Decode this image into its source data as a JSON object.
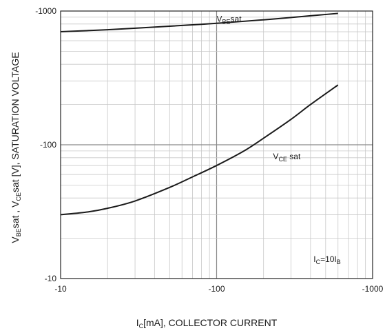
{
  "chart_data": {
    "type": "line",
    "x_scale": "log",
    "y_scale": "log",
    "xlim": [
      -10,
      -1000
    ],
    "ylim": [
      -10,
      -1000
    ],
    "x_ticks": [
      "-10",
      "-100",
      "-1000"
    ],
    "y_ticks": [
      "-10",
      "-100",
      "-1000"
    ],
    "x_tick_values": [
      -10,
      -100,
      -1000
    ],
    "y_tick_values": [
      -10,
      -100,
      -1000
    ],
    "xlabel": {
      "main": "I",
      "sub": "C",
      "rest": "[mA], COLLECTOR CURRENT"
    },
    "ylabel": {
      "p1": "V",
      "s1": "BE",
      "p2": "sat  , V",
      "s2": "CE",
      "p3": "sat  [V], SATURATION VOLTAGE"
    },
    "grid": true,
    "annotation": {
      "p1": "I",
      "s1": "C",
      "p2": "=10I",
      "s2": "B"
    },
    "series": [
      {
        "label_main": "V",
        "label_sub": "BE",
        "label_rest": "sat",
        "label_at": [
          -100,
          -830
        ],
        "x": [
          -10,
          -20,
          -50,
          -100,
          -200,
          -300,
          -600
        ],
        "y": [
          -700,
          -725,
          -770,
          -810,
          -860,
          -895,
          -960
        ]
      },
      {
        "label_main": "V",
        "label_sub": "CE",
        "label_rest": " sat",
        "label_at": [
          -230,
          -78
        ],
        "x": [
          -10,
          -15,
          -20,
          -30,
          -50,
          -70,
          -100,
          -150,
          -200,
          -300,
          -400,
          -600
        ],
        "y": [
          -30,
          -31.5,
          -33.5,
          -38,
          -48,
          -57.5,
          -70,
          -90,
          -112,
          -155,
          -200,
          -280
        ]
      }
    ]
  }
}
